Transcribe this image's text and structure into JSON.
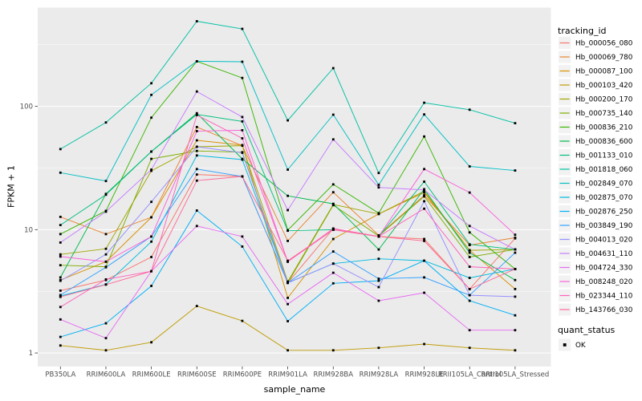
{
  "chart_data": {
    "type": "line",
    "title": "",
    "xlabel": "sample_name",
    "ylabel": "FPKM + 1",
    "y_scale": "log10",
    "y_ticks": [
      1,
      10,
      100
    ],
    "y_tick_labels": [
      "1",
      "10",
      "100"
    ],
    "ylim_px_note": "log axis, decades 1-100 visible",
    "grid": "on",
    "legend_position": "right",
    "legend_title": "tracking_id",
    "quant_legend": {
      "title": "quant_status",
      "items": [
        "OK"
      ]
    },
    "marker": {
      "shape": "square",
      "color": "#000000"
    },
    "panel_bg": "#EBEBEB",
    "grid_color": "#FFFFFF",
    "tick_text_color": "#4D4D4D",
    "categories": [
      "PB350LA",
      "RRIM600LA",
      "RRIM600LE",
      "RRIM600SE",
      "RRIM600PE",
      "RRIM901LA",
      "RRIM928BA",
      "RRIM928LA",
      "RRIM928LE",
      "RRII105LA_Control",
      "RRII105LA_Stressed"
    ],
    "series": [
      {
        "name": "Hb_000056_080",
        "color": "#F8766D",
        "values": [
          3.2,
          3.9,
          6.0,
          28,
          27,
          3.7,
          10.2,
          8.8,
          8.4,
          3.3,
          8.5
        ]
      },
      {
        "name": "Hb_000069_780",
        "color": "#EA8331",
        "values": [
          12.7,
          9.2,
          12.6,
          68,
          48,
          8.1,
          20.1,
          9.0,
          19.0,
          7.5,
          8.6
        ]
      },
      {
        "name": "Hb_000087_100",
        "color": "#D89000",
        "values": [
          3.9,
          5.5,
          12.6,
          53,
          48.5,
          2.8,
          8.4,
          13.4,
          20.0,
          6.8,
          3.3
        ]
      },
      {
        "name": "Hb_000103_420",
        "color": "#C09B00",
        "values": [
          1.15,
          1.05,
          1.22,
          2.4,
          1.82,
          1.05,
          1.05,
          1.1,
          1.18,
          1.1,
          1.05
        ]
      },
      {
        "name": "Hb_000200_170",
        "color": "#A3A500",
        "values": [
          6.3,
          7.0,
          30.0,
          47,
          48,
          3.8,
          16.0,
          13.4,
          20.5,
          6.8,
          6.9
        ]
      },
      {
        "name": "Hb_000735_140",
        "color": "#7CAE00",
        "values": [
          5.15,
          5.0,
          37.5,
          43.5,
          42.5,
          3.7,
          15.8,
          8.9,
          18.6,
          6.0,
          6.9
        ]
      },
      {
        "name": "Hb_000836_210",
        "color": "#39B600",
        "values": [
          9.2,
          14.2,
          81,
          232,
          170,
          9.9,
          23.3,
          13.6,
          57,
          9.5,
          4.8
        ]
      },
      {
        "name": "Hb_000836_600",
        "color": "#00BB4E",
        "values": [
          4.1,
          19.5,
          43,
          88,
          37.5,
          18.8,
          16.2,
          6.9,
          21.3,
          6.5,
          3.9
        ]
      },
      {
        "name": "Hb_001133_010",
        "color": "#00BF7D",
        "values": [
          10.9,
          19.2,
          43,
          86,
          75.5,
          9.8,
          10.0,
          8.8,
          24.5,
          7.6,
          6.9
        ]
      },
      {
        "name": "Hb_001818_060",
        "color": "#00C1A3",
        "values": [
          45,
          74,
          154,
          490,
          425,
          77,
          204,
          28.8,
          107,
          94,
          73
        ]
      },
      {
        "name": "Hb_002849_070",
        "color": "#00BFC4",
        "values": [
          29,
          24.8,
          124,
          232,
          230,
          30.7,
          85.6,
          23.1,
          86,
          32.6,
          30.2
        ]
      },
      {
        "name": "Hb_002875_070",
        "color": "#00BAE0",
        "values": [
          2.9,
          3.6,
          8.0,
          40,
          37,
          3.7,
          5.3,
          5.8,
          5.6,
          4.06,
          4.8
        ]
      },
      {
        "name": "Hb_002876_250",
        "color": "#00B0F6",
        "values": [
          1.35,
          1.74,
          3.5,
          14.3,
          7.3,
          1.81,
          3.67,
          3.85,
          5.6,
          2.65,
          2.02
        ]
      },
      {
        "name": "Hb_003849_190",
        "color": "#35A2FF",
        "values": [
          2.95,
          4.95,
          8.8,
          31,
          27,
          3.7,
          6.65,
          4.0,
          4.1,
          2.94,
          6.5
        ]
      },
      {
        "name": "Hb_004013_020",
        "color": "#9590FF",
        "values": [
          3.85,
          6.3,
          16.8,
          47,
          42,
          3.7,
          5.3,
          3.42,
          17.0,
          2.94,
          2.86
        ]
      },
      {
        "name": "Hb_004631_110",
        "color": "#C77CFF",
        "values": [
          7.86,
          14.0,
          30.7,
          132,
          82,
          14.4,
          54,
          22,
          21,
          10.7,
          6.9
        ]
      },
      {
        "name": "Hb_004724_330",
        "color": "#E76BF3",
        "values": [
          1.87,
          1.32,
          4.6,
          10.7,
          8.8,
          2.49,
          4.47,
          2.65,
          3.08,
          1.53,
          1.53
        ]
      },
      {
        "name": "Hb_008248_020",
        "color": "#FA62DB",
        "values": [
          6.05,
          5.5,
          8.8,
          63,
          64,
          5.5,
          10.0,
          8.8,
          31,
          20,
          9.1
        ]
      },
      {
        "name": "Hb_023344_110",
        "color": "#FF62BC",
        "values": [
          2.36,
          3.95,
          4.6,
          85,
          55,
          5.5,
          10.2,
          8.8,
          14.8,
          5.0,
          4.8
        ]
      },
      {
        "name": "Hb_143766_030",
        "color": "#FF6A98",
        "values": [
          2.85,
          3.58,
          4.6,
          25,
          27,
          5.6,
          10.0,
          8.8,
          8.1,
          3.3,
          4.8
        ]
      }
    ]
  }
}
